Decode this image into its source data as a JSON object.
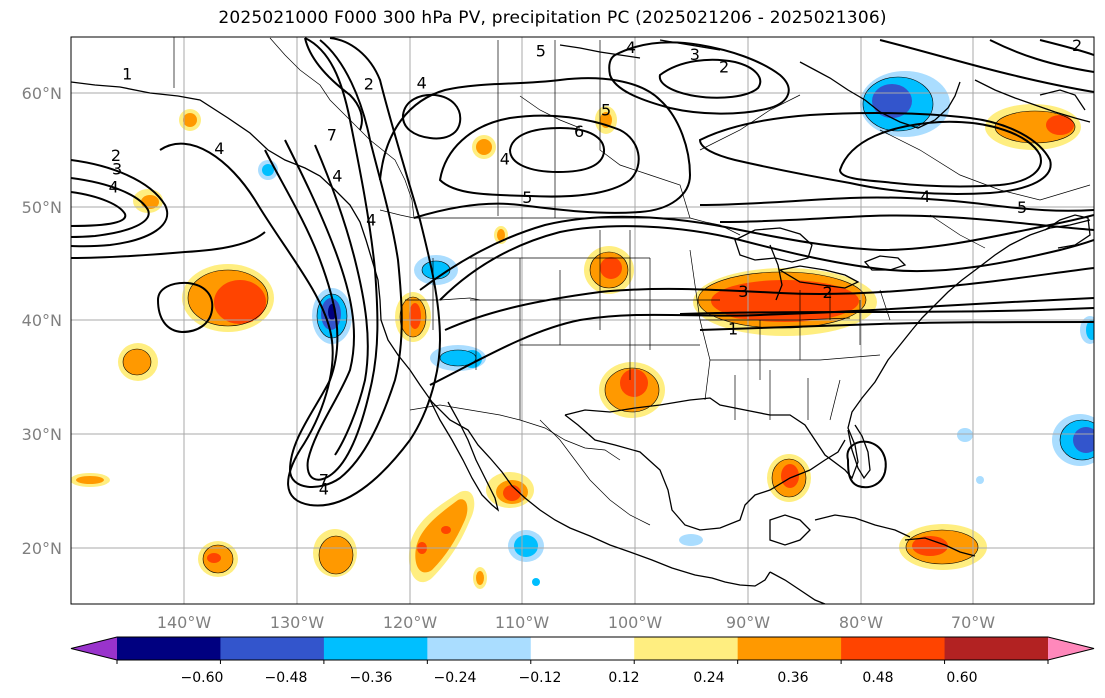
{
  "title": "2025021000 F000 300 hPa PV, precipitation PC (2025021206 - 2025021306)",
  "map": {
    "projection": "PlateCarree",
    "lon_range": [
      -150,
      -59
    ],
    "lat_range": [
      15,
      65
    ],
    "lat_labels": [
      {
        "text": "60°N",
        "lat": 60
      },
      {
        "text": "50°N",
        "lat": 50
      },
      {
        "text": "40°N",
        "lat": 40
      },
      {
        "text": "30°N",
        "lat": 30
      },
      {
        "text": "20°N",
        "lat": 20
      }
    ],
    "lon_labels": [
      {
        "text": "140°W",
        "lon": -140
      },
      {
        "text": "130°W",
        "lon": -130
      },
      {
        "text": "120°W",
        "lon": -120
      },
      {
        "text": "110°W",
        "lon": -110
      },
      {
        "text": "100°W",
        "lon": -100
      },
      {
        "text": "90°W",
        "lon": -90
      },
      {
        "text": "80°W",
        "lon": -80
      },
      {
        "text": "70°W",
        "lon": -70
      }
    ],
    "gridlines": true,
    "pv_contour_labels": [
      {
        "text": "1",
        "lon": -145.0,
        "lat": 61.8
      },
      {
        "text": "2",
        "lon": -146.0,
        "lat": 54.6
      },
      {
        "text": "3",
        "lon": -145.9,
        "lat": 53.4
      },
      {
        "text": "4",
        "lon": -146.2,
        "lat": 51.8
      },
      {
        "text": "4",
        "lon": -136.8,
        "lat": 55.2
      },
      {
        "text": "4",
        "lon": -126.3,
        "lat": 52.8
      },
      {
        "text": "2",
        "lon": -123.5,
        "lat": 60.9
      },
      {
        "text": "4",
        "lon": -118.8,
        "lat": 61.0
      },
      {
        "text": "4",
        "lon": -111.4,
        "lat": 54.3
      },
      {
        "text": "5",
        "lon": -109.4,
        "lat": 50.9
      },
      {
        "text": "6",
        "lon": -104.8,
        "lat": 56.7
      },
      {
        "text": "5",
        "lon": -108.2,
        "lat": 63.8
      },
      {
        "text": "5",
        "lon": -102.4,
        "lat": 58.6
      },
      {
        "text": "4",
        "lon": -100.2,
        "lat": 64.1
      },
      {
        "text": "3",
        "lon": -94.5,
        "lat": 63.5
      },
      {
        "text": "2",
        "lon": -91.9,
        "lat": 62.4
      },
      {
        "text": "3",
        "lon": -90.2,
        "lat": 42.6
      },
      {
        "text": "2",
        "lon": -82.7,
        "lat": 42.5
      },
      {
        "text": "1",
        "lon": -91.1,
        "lat": 39.3
      },
      {
        "text": "4",
        "lon": -123.3,
        "lat": 48.9
      },
      {
        "text": "7",
        "lon": -126.8,
        "lat": 56.4
      },
      {
        "text": "4",
        "lon": -127.5,
        "lat": 25.2
      },
      {
        "text": "7",
        "lon": -127.5,
        "lat": 26.0
      },
      {
        "text": "4",
        "lon": -74.0,
        "lat": 51.0
      },
      {
        "text": "5",
        "lon": -65.4,
        "lat": 50.0
      },
      {
        "text": "2",
        "lon": -60.5,
        "lat": 64.3
      }
    ]
  },
  "colorbar": {
    "ticks": [
      "−0.60",
      "−0.48",
      "−0.36",
      "−0.24",
      "−0.12",
      "0.12",
      "0.24",
      "0.36",
      "0.48",
      "0.60"
    ],
    "bins": [
      {
        "range": "< -0.60",
        "color": "#9933cc"
      },
      {
        "range": "-0.60 to -0.48",
        "color": "#000080"
      },
      {
        "range": "-0.48 to -0.36",
        "color": "#3355cc"
      },
      {
        "range": "-0.36 to -0.24",
        "color": "#00bfff"
      },
      {
        "range": "-0.24 to -0.12",
        "color": "#aaddff"
      },
      {
        "range": "-0.12 to 0.12",
        "color": "#ffffff"
      },
      {
        "range": "0.12 to 0.24",
        "color": "#ffee80"
      },
      {
        "range": "0.24 to 0.36",
        "color": "#ff9900"
      },
      {
        "range": "0.36 to 0.48",
        "color": "#ff4400"
      },
      {
        "range": "0.48 to 0.60",
        "color": "#b22222"
      },
      {
        "range": "> 0.60",
        "color": "#ff88bb"
      }
    ]
  }
}
